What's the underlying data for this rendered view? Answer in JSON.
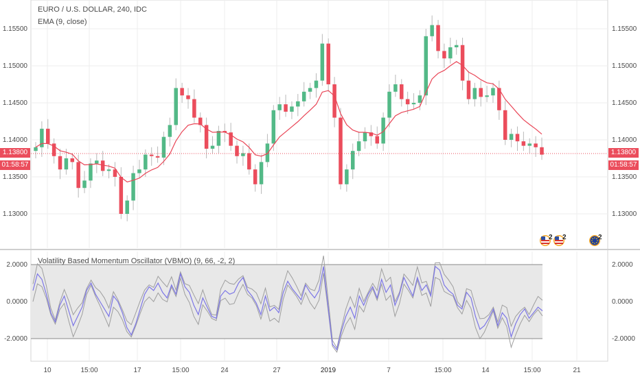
{
  "header": {
    "symbol_line": "EURO / U.S. DOLLAR, 240, IDC",
    "ema_line": "EMA (9, close)"
  },
  "indicator": {
    "title": "Volatility Based Momentum Oscillator (VBMO) (9, 66, -2, 2)"
  },
  "last_price": {
    "value": "1.13800",
    "countdown": "01:58:57"
  },
  "badges": [
    {
      "name": "us-flag-event-icon",
      "count": "2"
    },
    {
      "name": "us-flag-event-icon",
      "count": "2"
    },
    {
      "name": "eu-flag-event-icon",
      "count": "2"
    }
  ],
  "colors": {
    "up": "#53b987",
    "down": "#eb4d5c",
    "ema": "#e94556",
    "vbmo": "#7c76e6",
    "bands": "#9e9e9e",
    "band_fill": "#e8e8e8",
    "grid": "#eeeeee",
    "axis_text": "#4a4a4a"
  },
  "chart_data": [
    {
      "type": "candlestick",
      "title": "EURO / U.S. DOLLAR, 240, IDC",
      "y_ticks": [
        "1.15500",
        "1.15000",
        "1.14500",
        "1.14000",
        "1.13500",
        "1.13000"
      ],
      "ylim": [
        1.1255,
        1.159
      ],
      "x_ticks": [
        "10",
        "15:00",
        "17",
        "15:00",
        "24",
        "27",
        "2019",
        "7",
        "15:00",
        "14",
        "15:00",
        "21"
      ],
      "closes": [
        1.139,
        1.1415,
        1.1395,
        1.1378,
        1.136,
        1.1375,
        1.137,
        1.1335,
        1.1345,
        1.1368,
        1.1372,
        1.1358,
        1.136,
        1.135,
        1.13,
        1.1318,
        1.1355,
        1.136,
        1.138,
        1.1378,
        1.1376,
        1.1404,
        1.142,
        1.147,
        1.146,
        1.1455,
        1.143,
        1.142,
        1.1388,
        1.1392,
        1.1412,
        1.141,
        1.1392,
        1.1378,
        1.1382,
        1.136,
        1.134,
        1.137,
        1.1395,
        1.144,
        1.1448,
        1.1438,
        1.1445,
        1.1452,
        1.1465,
        1.147,
        1.148,
        1.153,
        1.1475,
        1.143,
        1.134,
        1.136,
        1.1385,
        1.1398,
        1.141,
        1.1405,
        1.1395,
        1.143,
        1.1465,
        1.1475,
        1.1455,
        1.1448,
        1.145,
        1.146,
        1.154,
        1.1555,
        1.152,
        1.151,
        1.1525,
        1.1528,
        1.148,
        1.1455,
        1.147,
        1.1458,
        1.146,
        1.147,
        1.144,
        1.14,
        1.1408,
        1.1398,
        1.1392,
        1.1395,
        1.139,
        1.138
      ],
      "ema_description": "EMA (9, close)"
    },
    {
      "type": "line",
      "title": "Volatility Based Momentum Oscillator (VBMO) (9, 66, -2, 2)",
      "y_ticks": [
        "2.0000",
        "0.0000",
        "-2.0000"
      ],
      "ylim": [
        -3.0,
        2.7
      ],
      "band_levels": [
        -2,
        2
      ],
      "vbmo": [
        0.6,
        1.5,
        1.2,
        0.4,
        -0.6,
        -1.1,
        -0.2,
        0.3,
        -0.5,
        -1.3,
        -0.8,
        -0.3,
        0.6,
        1.0,
        0.4,
        0.0,
        -0.4,
        -0.8,
        0.3,
        0.0,
        -0.6,
        -1.4,
        -1.8,
        -1.2,
        -0.4,
        0.4,
        0.8,
        0.6,
        1.0,
        0.5,
        0.2,
        0.9,
        0.4,
        1.5,
        0.8,
        0.5,
        -0.2,
        -0.7,
        0.2,
        -0.3,
        -0.8,
        -0.9,
        0.3,
        0.6,
        0.4,
        0.5,
        1.0,
        1.3,
        0.6,
        0.3,
        -0.1,
        -0.7,
        0.3,
        -0.5,
        -0.3,
        -0.6,
        0.5,
        1.1,
        0.7,
        0.4,
        0.1,
        0.9,
        0.5,
        0.2,
        0.6,
        1.9,
        -0.2,
        -2.3,
        -2.6,
        -1.6,
        -0.8,
        -0.3,
        -0.9,
        0.3,
        -0.2,
        0.4,
        0.8,
        0.2,
        1.2,
        0.5,
        0.9,
        -0.2,
        0.4,
        1.3,
        0.8,
        0.3,
        1.3,
        0.6,
        0.9,
        0.3,
        1.9,
        1.7,
        0.9,
        0.6,
        0.4,
        -0.2,
        -0.4,
        0.5,
        0.2,
        -0.8,
        -1.5,
        -1.3,
        -0.9,
        -0.4,
        -1.3,
        -0.6,
        -0.9,
        -1.9,
        -1.2,
        -0.7,
        -0.4,
        -0.9,
        -0.6,
        -0.3,
        -0.5
      ]
    }
  ]
}
